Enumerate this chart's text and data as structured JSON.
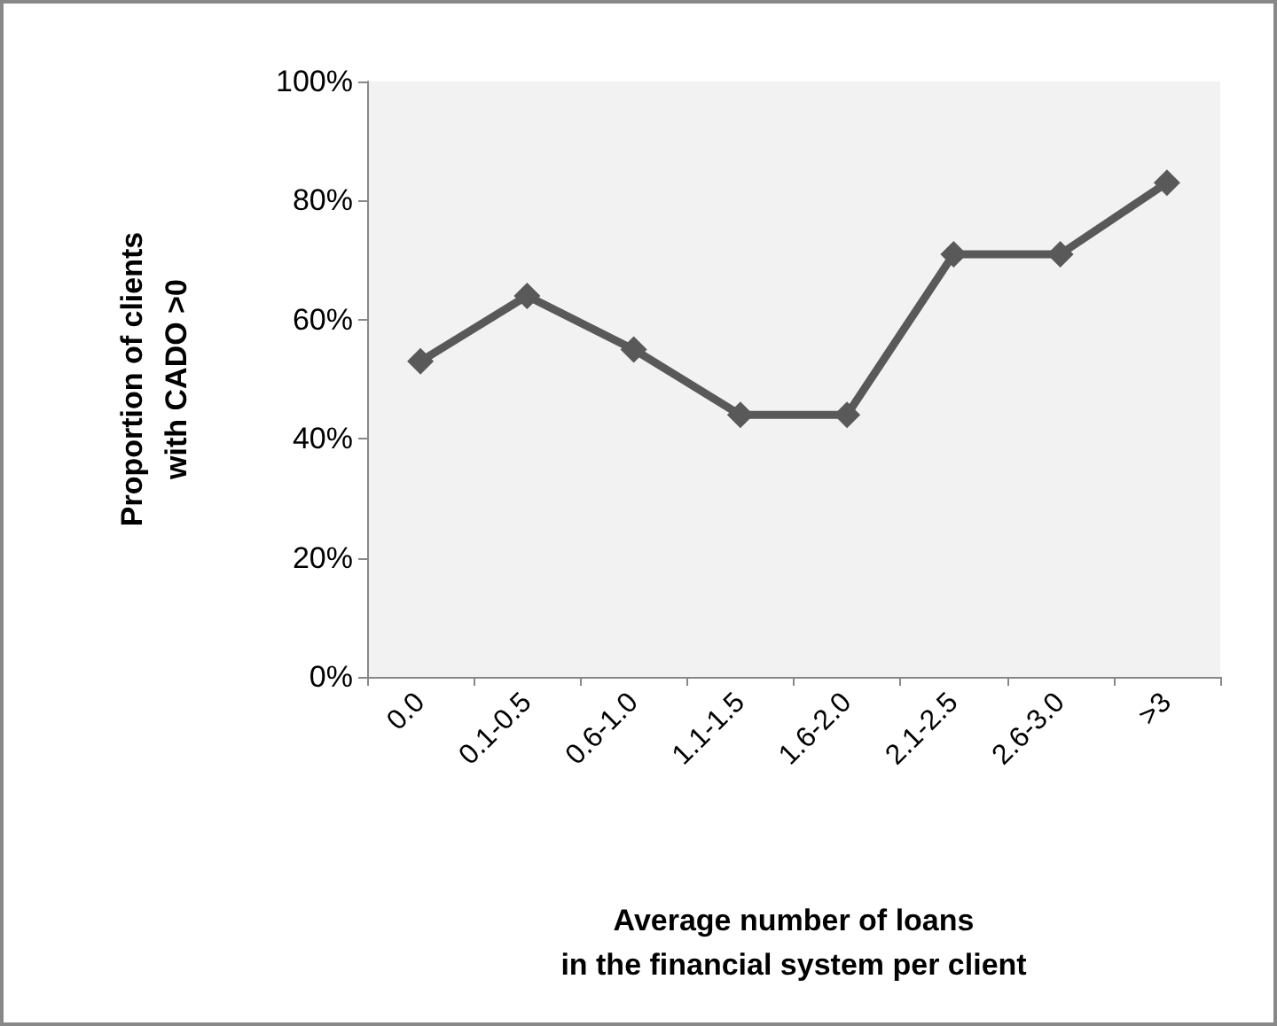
{
  "chart_data": {
    "type": "line",
    "xlabel": "Average number of loans\nin the financial system per client",
    "ylabel": "Proportion of clients\nwith CADO >0",
    "categories": [
      "0.0",
      "0.1-0.5",
      "0.6-1.0",
      "1.1-1.5",
      "1.6-2.0",
      "2.1-2.5",
      "2.6-3.0",
      ">3"
    ],
    "series": [
      {
        "color": "#595959",
        "values": [
          53,
          64,
          55,
          44,
          44,
          71,
          71,
          83
        ]
      }
    ],
    "ylim": [
      0,
      100
    ],
    "yticks": [
      {
        "value": 0,
        "label": "0%"
      },
      {
        "value": 20,
        "label": "20%"
      },
      {
        "value": 40,
        "label": "40%"
      },
      {
        "value": 60,
        "label": "60%"
      },
      {
        "value": 80,
        "label": "80%"
      },
      {
        "value": 100,
        "label": "100%"
      }
    ],
    "grid": false,
    "marker": "diamond",
    "line_style": "solid"
  }
}
